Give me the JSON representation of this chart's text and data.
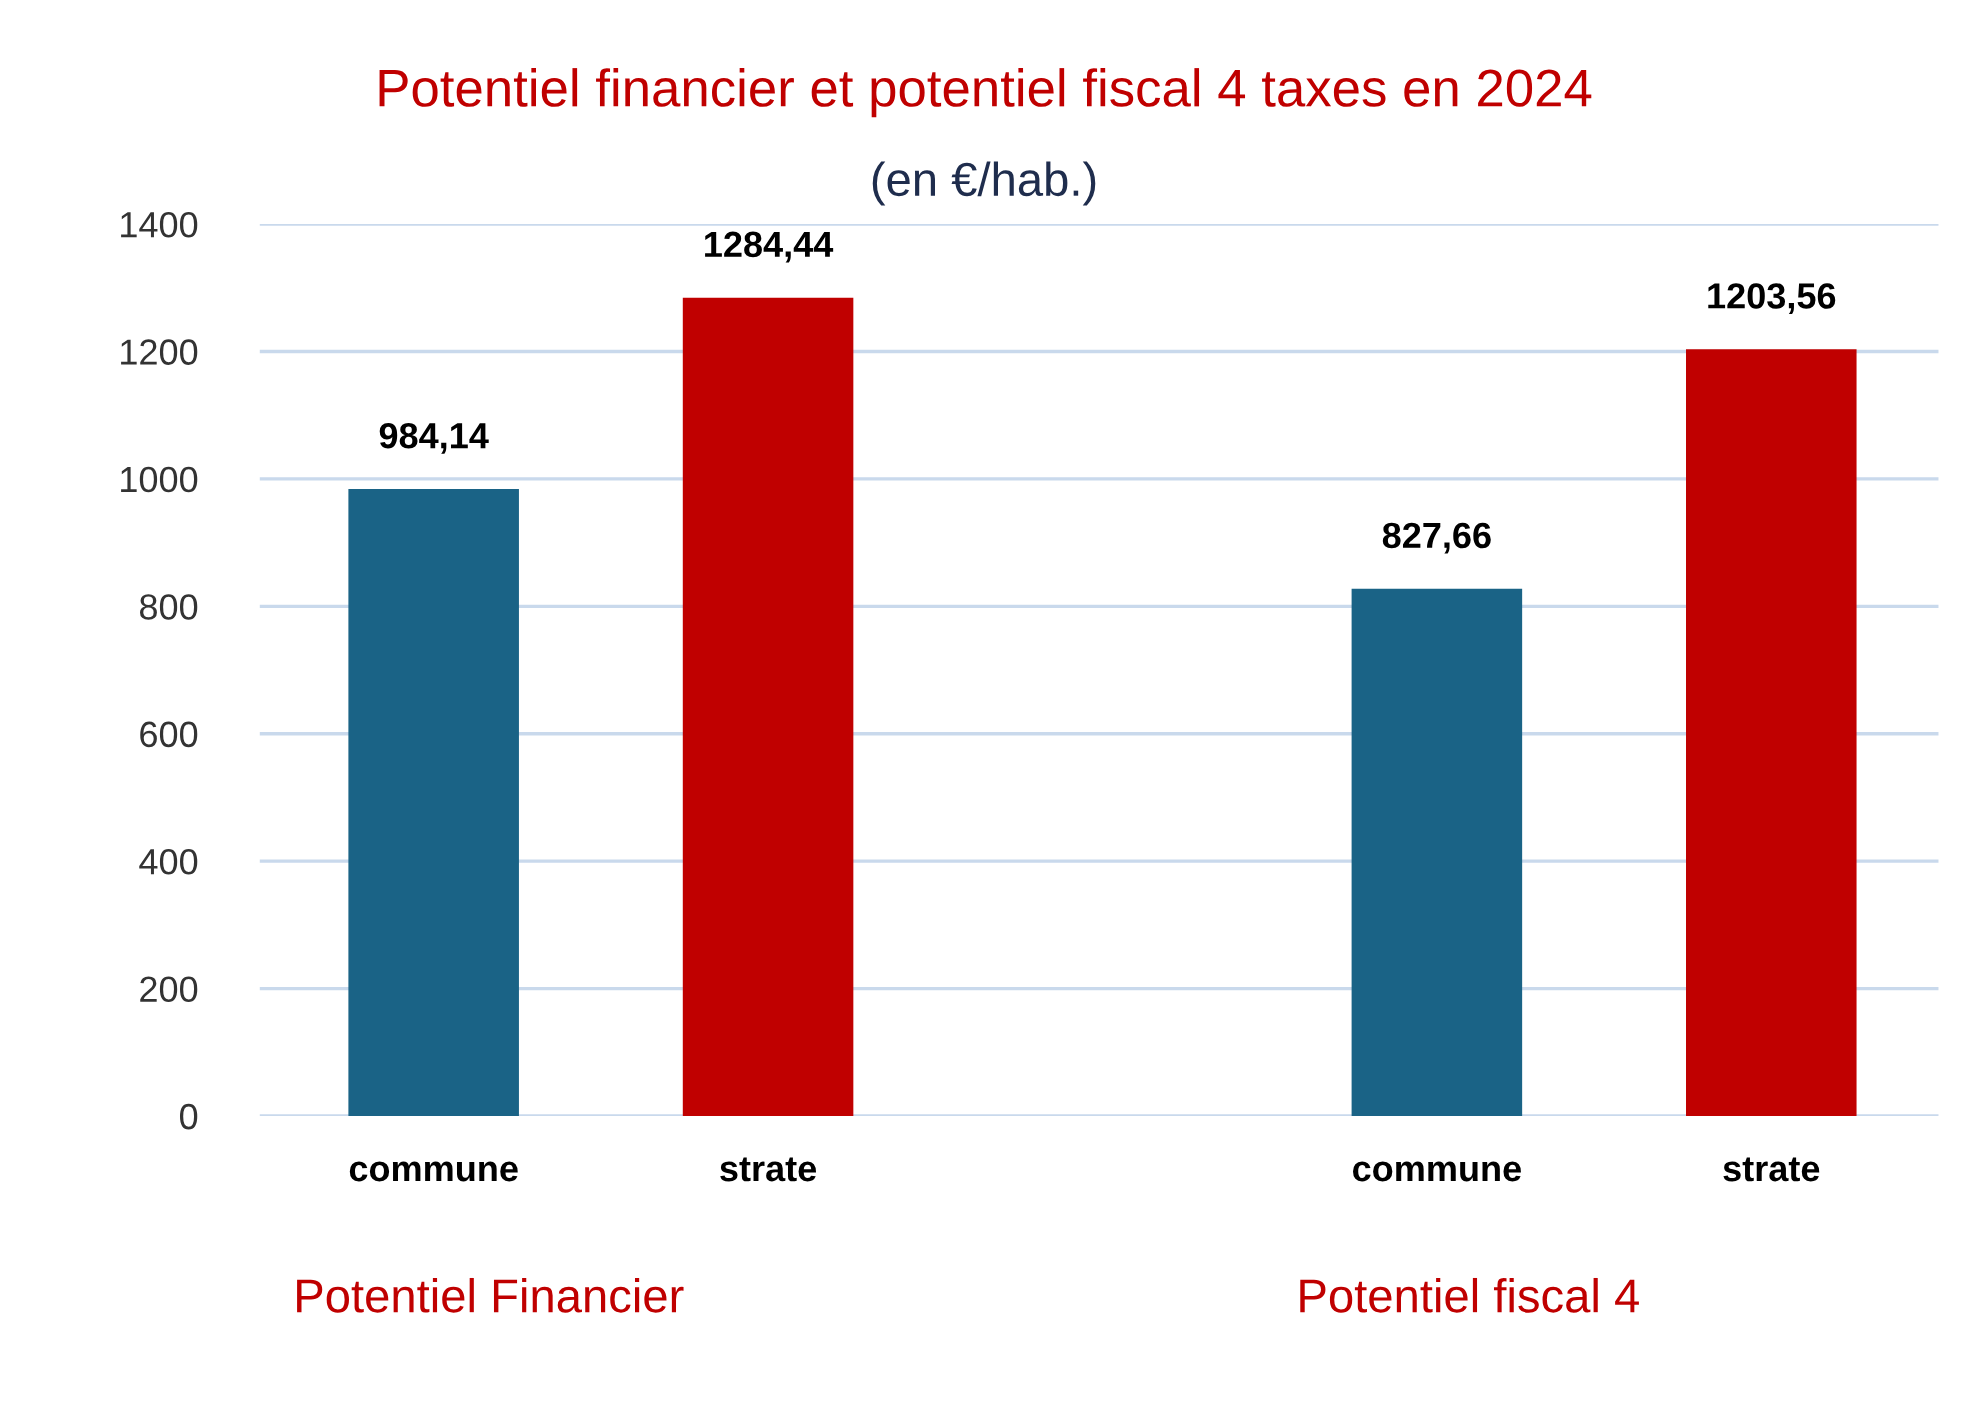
{
  "chart_data": {
    "type": "bar",
    "title": "Potentiel financier et potentiel fiscal 4 taxes en 2024",
    "subtitle": "(en €/hab.)",
    "categories": [
      "commune",
      "strate",
      null,
      "commune",
      "strate"
    ],
    "values": [
      984.14,
      1284.44,
      null,
      827.66,
      1203.56
    ],
    "colors": [
      "#1a6386",
      "#c00000",
      null,
      "#1a6386",
      "#c00000"
    ],
    "value_labels": [
      "984,14",
      "1284,44",
      null,
      "827,66",
      "1203,56"
    ],
    "ylim": [
      0,
      1400
    ],
    "yticks": [
      0,
      200,
      400,
      600,
      800,
      1000,
      1200,
      1400
    ],
    "grid": "y",
    "legend": false,
    "annotations": [
      "Potentiel Financier",
      "Potentiel fiscal 4"
    ]
  }
}
